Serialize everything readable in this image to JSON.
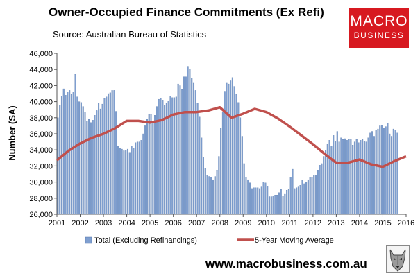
{
  "title": "Owner-Occupied Finance Commitments (Ex Refi)",
  "source": "Source: Australian  Bureau of Statistics",
  "logo": {
    "line1": "MACRO",
    "line2": "BUSINESS",
    "color": "#d71920",
    "icon": "wolf-head-icon"
  },
  "website": "www.macrobusiness.com.au",
  "chart_data": {
    "type": "bar",
    "ylabel": "Number (SA)",
    "xlabel": "",
    "ylim": [
      26000,
      46000
    ],
    "yticks": [
      26000,
      28000,
      30000,
      32000,
      34000,
      36000,
      38000,
      40000,
      42000,
      44000,
      46000
    ],
    "ytick_labels": [
      "26,000",
      "28,000",
      "30,000",
      "32,000",
      "34,000",
      "36,000",
      "38,000",
      "40,000",
      "42,000",
      "44,000",
      "46,000"
    ],
    "xlim": [
      2001,
      2016
    ],
    "xtick_labels": [
      "2001",
      "2002",
      "2003",
      "2004",
      "2005",
      "2006",
      "2007",
      "2008",
      "2009",
      "2010",
      "2011",
      "2012",
      "2013",
      "2014",
      "2015",
      "2016"
    ],
    "grid": false,
    "legend_position": "bottom",
    "start": "2001-01",
    "frequency": "monthly",
    "series": [
      {
        "name": "Total (Excluding Refinancings)",
        "type": "bar",
        "color": "#7f9fd0",
        "values": [
          38000,
          39600,
          40700,
          41600,
          40800,
          41200,
          41400,
          40900,
          41200,
          43400,
          40600,
          40000,
          39900,
          39400,
          38700,
          37600,
          37800,
          37400,
          37700,
          38300,
          38900,
          39800,
          39100,
          39700,
          40400,
          40600,
          41000,
          41100,
          41400,
          41400,
          38800,
          34500,
          34200,
          34100,
          33900,
          34000,
          34100,
          33700,
          34500,
          34200,
          34900,
          35000,
          35000,
          35200,
          36000,
          37000,
          37800,
          38400,
          38400,
          37600,
          38300,
          39400,
          40300,
          40400,
          40200,
          39600,
          39800,
          40100,
          40700,
          40500,
          40500,
          40600,
          42200,
          42000,
          41500,
          43100,
          43100,
          44400,
          44000,
          42900,
          42300,
          41400,
          39800,
          38100,
          35500,
          33100,
          31700,
          30800,
          30700,
          30600,
          30300,
          30700,
          31500,
          33200,
          36700,
          38700,
          41300,
          42300,
          42200,
          42600,
          43000,
          41900,
          40900,
          39900,
          38000,
          35700,
          32300,
          30600,
          30300,
          29900,
          29200,
          29300,
          29300,
          29300,
          29200,
          29400,
          30000,
          29900,
          29500,
          28200,
          28200,
          28300,
          28400,
          28400,
          28700,
          29100,
          28300,
          28500,
          29000,
          29100,
          30600,
          31600,
          29200,
          29300,
          29400,
          29600,
          30200,
          29800,
          30000,
          30300,
          30600,
          30600,
          30800,
          30900,
          31500,
          32100,
          32300,
          33200,
          34000,
          34700,
          35200,
          34500,
          35800,
          35100,
          36300,
          35000,
          35500,
          35300,
          35400,
          35200,
          35300,
          35300,
          34600,
          35000,
          35300,
          34900,
          35200,
          35300,
          35100,
          35000,
          35500,
          36100,
          36300,
          35700,
          36500,
          36600,
          37000,
          37100,
          36700,
          36900,
          37300,
          36000,
          35700,
          36600,
          36500,
          36100
        ]
      },
      {
        "name": "5-Year Moving Average",
        "type": "line",
        "color": "#c0504d",
        "x": [
          2001.0,
          2001.5,
          2002.0,
          2002.5,
          2003.0,
          2003.5,
          2004.0,
          2004.5,
          2005.0,
          2005.5,
          2006.0,
          2006.5,
          2007.0,
          2007.5,
          2008.0,
          2008.5,
          2009.0,
          2009.5,
          2010.0,
          2010.5,
          2011.0,
          2011.5,
          2012.0,
          2012.5,
          2013.0,
          2013.5,
          2014.0,
          2014.5,
          2015.0,
          2015.5,
          2016.0
        ],
        "values": [
          32700,
          33900,
          34800,
          35500,
          36000,
          36700,
          37600,
          37600,
          37400,
          37700,
          38400,
          38700,
          38700,
          38900,
          39300,
          38000,
          38500,
          39100,
          38700,
          37900,
          36900,
          35800,
          34700,
          33500,
          32400,
          32400,
          32800,
          32200,
          31900,
          32600,
          33200
        ]
      }
    ]
  }
}
